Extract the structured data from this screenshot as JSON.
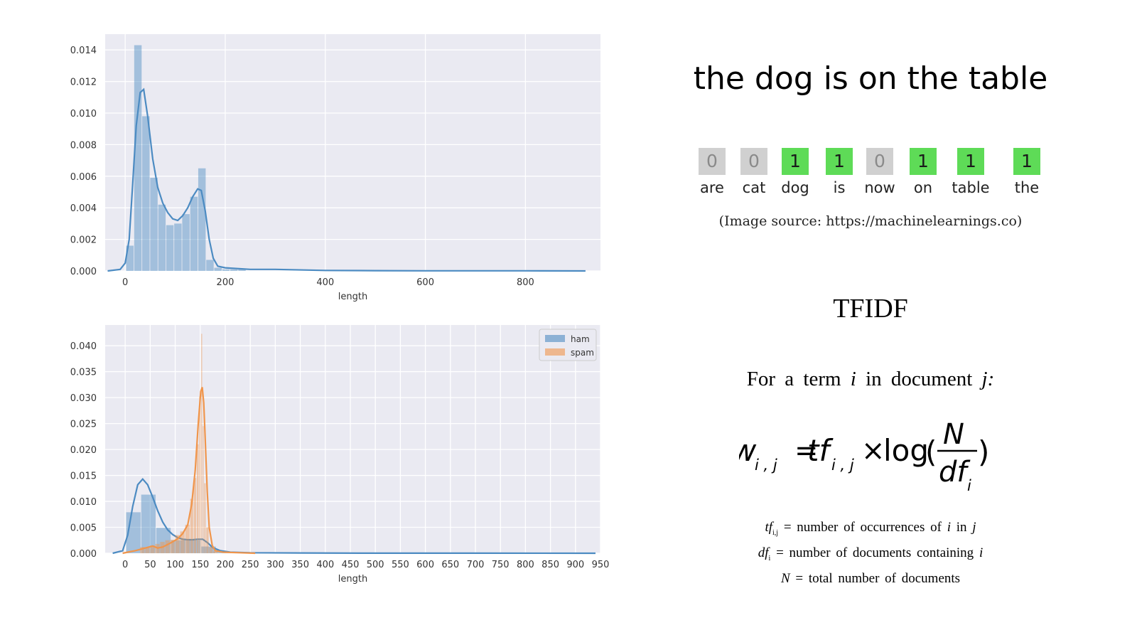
{
  "chart_data": [
    {
      "type": "histogram+kde",
      "xlabel": "length",
      "ylabel": "",
      "xlim": [
        -40,
        950
      ],
      "ylim": [
        0,
        0.015
      ],
      "x_ticks": [
        "0",
        "200",
        "400",
        "600",
        "800"
      ],
      "y_ticks": [
        "0.000",
        "0.002",
        "0.004",
        "0.006",
        "0.008",
        "0.010",
        "0.012",
        "0.014"
      ],
      "grid": true,
      "legend": null,
      "series": [
        {
          "color": "#4c8bc2",
          "bins": [
            {
              "x0": 2,
              "x1": 18,
              "density": 0.0016
            },
            {
              "x0": 18,
              "x1": 34,
              "density": 0.0143
            },
            {
              "x0": 34,
              "x1": 50,
              "density": 0.0098
            },
            {
              "x0": 50,
              "x1": 66,
              "density": 0.0059
            },
            {
              "x0": 66,
              "x1": 82,
              "density": 0.0042
            },
            {
              "x0": 82,
              "x1": 98,
              "density": 0.0029
            },
            {
              "x0": 98,
              "x1": 114,
              "density": 0.003
            },
            {
              "x0": 114,
              "x1": 130,
              "density": 0.0036
            },
            {
              "x0": 130,
              "x1": 146,
              "density": 0.0047
            },
            {
              "x0": 146,
              "x1": 162,
              "density": 0.0065
            },
            {
              "x0": 162,
              "x1": 178,
              "density": 0.0007
            },
            {
              "x0": 178,
              "x1": 194,
              "density": 0.0002
            },
            {
              "x0": 194,
              "x1": 210,
              "density": 0.0001
            },
            {
              "x0": 210,
              "x1": 226,
              "density": 0.0001
            },
            {
              "x0": 226,
              "x1": 242,
              "density": 0.0001
            }
          ],
          "kde": [
            [
              -35,
              0
            ],
            [
              -10,
              0.0001
            ],
            [
              0,
              0.0005
            ],
            [
              8,
              0.002
            ],
            [
              15,
              0.0055
            ],
            [
              22,
              0.0092
            ],
            [
              30,
              0.0113
            ],
            [
              37,
              0.0115
            ],
            [
              45,
              0.0098
            ],
            [
              55,
              0.0071
            ],
            [
              65,
              0.0053
            ],
            [
              75,
              0.0043
            ],
            [
              85,
              0.0037
            ],
            [
              95,
              0.0033
            ],
            [
              105,
              0.0032
            ],
            [
              115,
              0.0035
            ],
            [
              125,
              0.004
            ],
            [
              135,
              0.0047
            ],
            [
              145,
              0.0052
            ],
            [
              152,
              0.0051
            ],
            [
              160,
              0.0038
            ],
            [
              168,
              0.002
            ],
            [
              176,
              0.0008
            ],
            [
              185,
              0.0003
            ],
            [
              200,
              0.0002
            ],
            [
              250,
              0.0001
            ],
            [
              300,
              0.0001
            ],
            [
              400,
              3e-05
            ],
            [
              500,
              2e-05
            ],
            [
              600,
              1e-05
            ],
            [
              700,
              1e-05
            ],
            [
              800,
              1e-05
            ],
            [
              920,
              0
            ]
          ]
        }
      ]
    },
    {
      "type": "histogram+kde",
      "xlabel": "length",
      "ylabel": "",
      "xlim": [
        -40,
        950
      ],
      "ylim": [
        0,
        0.044
      ],
      "x_ticks": [
        "0",
        "50",
        "100",
        "150",
        "200",
        "250",
        "300",
        "350",
        "400",
        "450",
        "500",
        "550",
        "600",
        "650",
        "700",
        "750",
        "800",
        "850",
        "900",
        "950"
      ],
      "y_ticks": [
        "0.000",
        "0.005",
        "0.010",
        "0.015",
        "0.020",
        "0.025",
        "0.030",
        "0.035",
        "0.040"
      ],
      "grid": true,
      "legend": "top-right",
      "series": [
        {
          "name": "ham",
          "color": "#4c8bc2",
          "bins": [
            {
              "x0": 2,
              "x1": 32,
              "density": 0.0079
            },
            {
              "x0": 32,
              "x1": 62,
              "density": 0.0113
            },
            {
              "x0": 62,
              "x1": 92,
              "density": 0.0049
            },
            {
              "x0": 92,
              "x1": 122,
              "density": 0.0025
            },
            {
              "x0": 122,
              "x1": 152,
              "density": 0.0025
            },
            {
              "x0": 152,
              "x1": 182,
              "density": 0.0013
            },
            {
              "x0": 182,
              "x1": 212,
              "density": 0.0003
            },
            {
              "x0": 212,
              "x1": 242,
              "density": 0.0001
            }
          ],
          "kde": [
            [
              -25,
              0
            ],
            [
              -5,
              0.0005
            ],
            [
              5,
              0.0035
            ],
            [
              15,
              0.009
            ],
            [
              25,
              0.0132
            ],
            [
              35,
              0.0143
            ],
            [
              45,
              0.0132
            ],
            [
              55,
              0.0108
            ],
            [
              65,
              0.0082
            ],
            [
              75,
              0.006
            ],
            [
              85,
              0.0045
            ],
            [
              95,
              0.0036
            ],
            [
              105,
              0.003
            ],
            [
              115,
              0.0027
            ],
            [
              125,
              0.0026
            ],
            [
              135,
              0.0026
            ],
            [
              145,
              0.0027
            ],
            [
              155,
              0.0027
            ],
            [
              165,
              0.002
            ],
            [
              175,
              0.0011
            ],
            [
              190,
              0.0005
            ],
            [
              210,
              0.0002
            ],
            [
              250,
              0.0001
            ],
            [
              350,
              5e-05
            ],
            [
              500,
              2e-05
            ],
            [
              700,
              1e-05
            ],
            [
              940,
              0
            ]
          ]
        },
        {
          "name": "spam",
          "color": "#f0954b",
          "bins": [
            {
              "x0": 30,
              "x1": 40,
              "density": 0.0012
            },
            {
              "x0": 40,
              "x1": 50,
              "density": 0.0011
            },
            {
              "x0": 50,
              "x1": 60,
              "density": 0.0015
            },
            {
              "x0": 60,
              "x1": 70,
              "density": 0.0018
            },
            {
              "x0": 70,
              "x1": 80,
              "density": 0.0022
            },
            {
              "x0": 80,
              "x1": 90,
              "density": 0.0025
            },
            {
              "x0": 90,
              "x1": 100,
              "density": 0.0026
            },
            {
              "x0": 100,
              "x1": 110,
              "density": 0.0035
            },
            {
              "x0": 110,
              "x1": 120,
              "density": 0.0042
            },
            {
              "x0": 120,
              "x1": 130,
              "density": 0.0055
            },
            {
              "x0": 130,
              "x1": 137,
              "density": 0.0105
            },
            {
              "x0": 137,
              "x1": 143,
              "density": 0.0145
            },
            {
              "x0": 143,
              "x1": 148,
              "density": 0.021
            },
            {
              "x0": 148,
              "x1": 152,
              "density": 0.0302
            },
            {
              "x0": 152,
              "x1": 155,
              "density": 0.0423
            },
            {
              "x0": 155,
              "x1": 158,
              "density": 0.0245
            },
            {
              "x0": 158,
              "x1": 162,
              "density": 0.0135
            },
            {
              "x0": 162,
              "x1": 168,
              "density": 0.005
            },
            {
              "x0": 168,
              "x1": 176,
              "density": 0.0012
            },
            {
              "x0": 176,
              "x1": 185,
              "density": 0.0004
            }
          ],
          "kde": [
            [
              -5,
              0
            ],
            [
              5,
              0.0002
            ],
            [
              20,
              0.0005
            ],
            [
              40,
              0.001
            ],
            [
              55,
              0.0014
            ],
            [
              65,
              0.001
            ],
            [
              75,
              0.0012
            ],
            [
              85,
              0.0017
            ],
            [
              95,
              0.0022
            ],
            [
              105,
              0.0028
            ],
            [
              115,
              0.0038
            ],
            [
              125,
              0.0055
            ],
            [
              133,
              0.0095
            ],
            [
              140,
              0.016
            ],
            [
              146,
              0.025
            ],
            [
              151,
              0.0312
            ],
            [
              154,
              0.032
            ],
            [
              157,
              0.029
            ],
            [
              160,
              0.022
            ],
            [
              164,
              0.012
            ],
            [
              168,
              0.005
            ],
            [
              174,
              0.0015
            ],
            [
              180,
              0.0005
            ],
            [
              195,
              0.0002
            ],
            [
              230,
              0.0001
            ],
            [
              260,
              0
            ]
          ]
        }
      ]
    }
  ],
  "bow": {
    "sentence": "the dog is on the table",
    "vector": [
      {
        "value": "0",
        "word": "are",
        "active": false
      },
      {
        "value": "0",
        "word": "cat",
        "active": false
      },
      {
        "value": "1",
        "word": "dog",
        "active": true
      },
      {
        "value": "1",
        "word": "is",
        "active": true
      },
      {
        "value": "0",
        "word": "now",
        "active": false
      },
      {
        "value": "1",
        "word": "on",
        "active": true
      },
      {
        "value": "1",
        "word": "table",
        "active": true
      },
      {
        "value": "1",
        "word": "the",
        "active": true
      }
    ],
    "source": "(Image source: https://machinelearnings.co)"
  },
  "tfidf": {
    "title": "TFIDF",
    "term_line_prefix": "For a term",
    "term_var": "i",
    "term_line_mid": "in document",
    "doc_var": "j:",
    "formula": {
      "w": "w",
      "w_sub": "i , j",
      "eq": "=",
      "tf": "tf",
      "tf_sub": "i , j",
      "times": "×",
      "log": "log",
      "lparen": "(",
      "num": "N",
      "den": "df",
      "den_sub": "i",
      "rparen": ")"
    },
    "defs": [
      {
        "var": "tf",
        "sub": "i,j",
        "text_a": "= number of occurrences of",
        "v1": "i",
        "text_b": "in",
        "v2": "j"
      },
      {
        "var": "df",
        "sub": "i",
        "text_a": "= number of documents containing",
        "v1": "i",
        "text_b": "",
        "v2": ""
      },
      {
        "var": "N",
        "sub": "",
        "text_a": "= total number of documents",
        "v1": "",
        "text_b": "",
        "v2": ""
      }
    ]
  }
}
